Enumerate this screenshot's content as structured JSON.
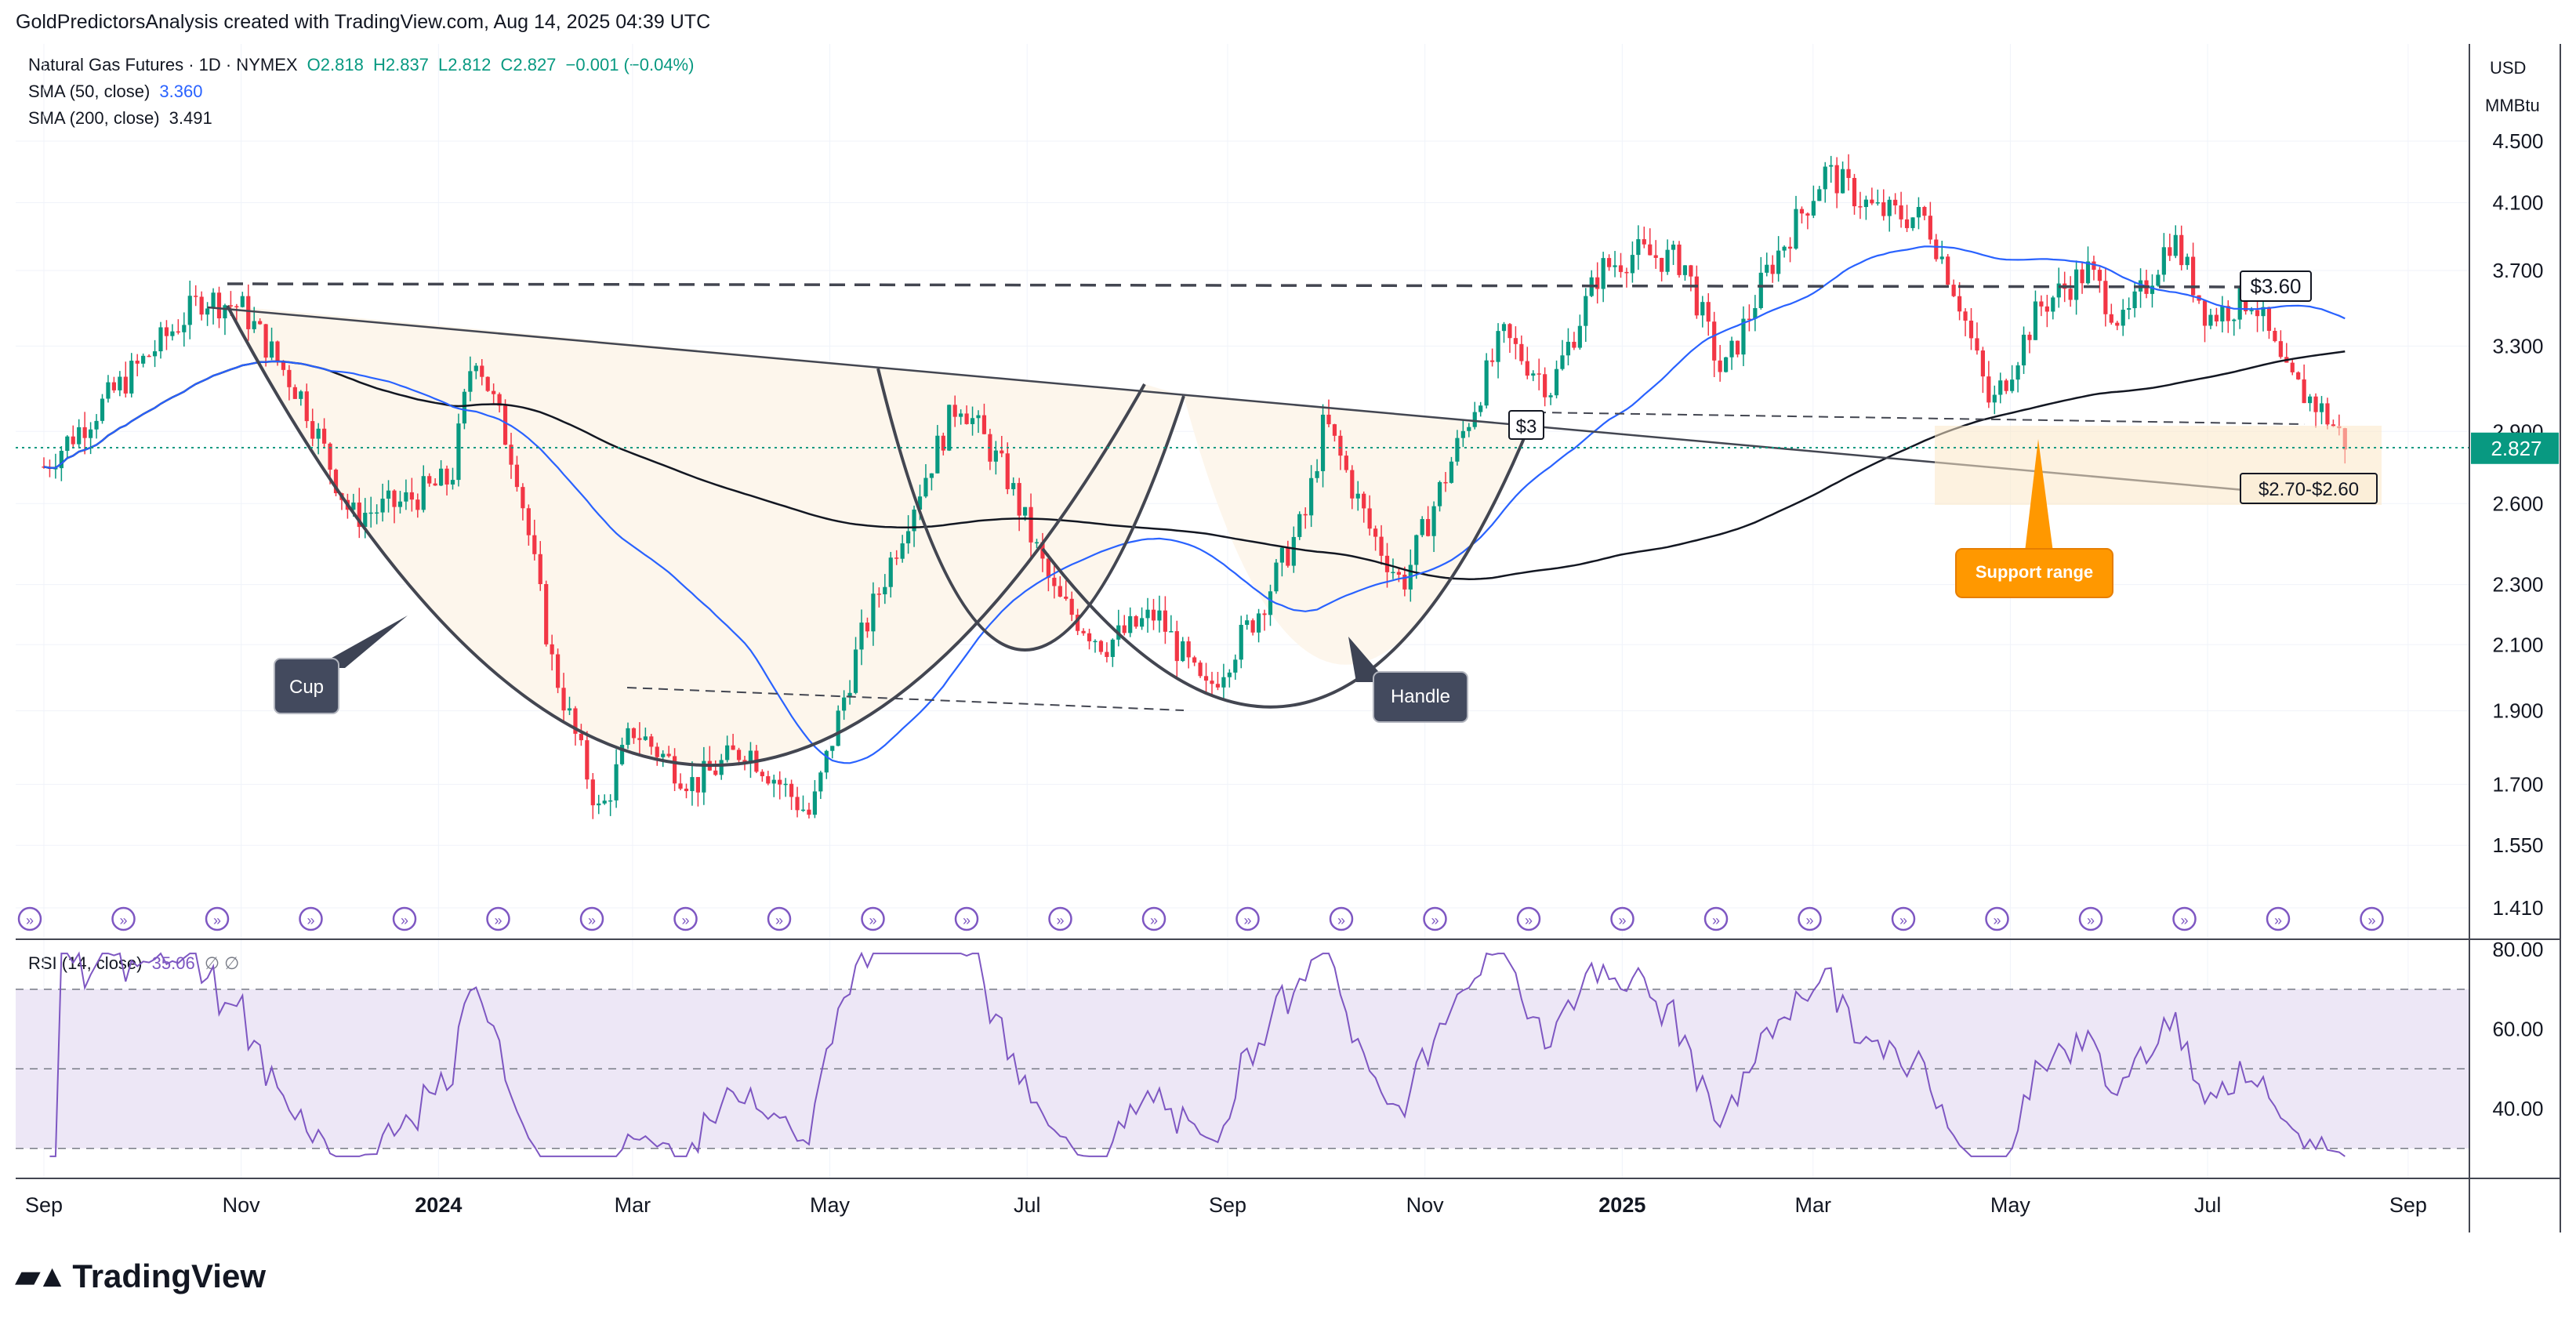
{
  "header": {
    "attribution": "GoldPredictorsAnalysis created with TradingView.com, Aug 14, 2025 04:39 UTC"
  },
  "legend": {
    "symbol": "Natural Gas Futures · 1D · NYMEX",
    "open": "O2.818",
    "high": "H2.837",
    "low": "L2.812",
    "close": "C2.827",
    "change": "−0.001 (−0.04%)",
    "sma50_label": "SMA (50, close)",
    "sma50_value": "3.360",
    "sma200_label": "SMA (200, close)",
    "sma200_value": "3.491",
    "rsi_label": "RSI (14, close)",
    "rsi_value": "35.06",
    "rsi_extra": "∅ ∅"
  },
  "axis": {
    "currency": "USD",
    "unit": "MMBtu"
  },
  "colors": {
    "up": "#089981",
    "down": "#f23645",
    "sma50": "#2962ff",
    "sma200": "#131722",
    "rsi": "#7e57c2",
    "rsi_band": "#ede7f6",
    "support": "#ff9800",
    "cup_fill": "#fdf6ec",
    "price_label_bg": "#089981"
  },
  "brand": {
    "name": "TradingView"
  },
  "chart_data": {
    "type": "candlestick",
    "series_name": "Natural Gas Futures",
    "last_price": "2.827",
    "y_axis": {
      "scale": "log",
      "ticks": [
        "4.500",
        "4.100",
        "3.700",
        "3.300",
        "2.900",
        "2.600",
        "2.300",
        "2.100",
        "1.900",
        "1.700",
        "1.550",
        "1.410"
      ]
    },
    "x_axis": {
      "ticks": [
        "Sep",
        "Nov",
        "2024",
        "Mar",
        "May",
        "Jul",
        "Sep",
        "Nov",
        "2025",
        "Mar",
        "May",
        "Jul",
        "Sep"
      ],
      "bold": [
        "2024",
        "2025"
      ]
    },
    "approx_closes": [
      [
        "2023-09",
        2.75
      ],
      [
        "2023-10-20",
        3.55
      ],
      [
        "2023-11-01",
        3.5
      ],
      [
        "2023-11-20",
        3.05
      ],
      [
        "2023-12-05",
        2.55
      ],
      [
        "2023-12-20",
        2.6
      ],
      [
        "2024-01-05",
        2.7
      ],
      [
        "2024-01-12",
        3.3
      ],
      [
        "2024-01-25",
        2.75
      ],
      [
        "2024-02-05",
        2.05
      ],
      [
        "2024-02-20",
        1.62
      ],
      [
        "2024-03-01",
        1.85
      ],
      [
        "2024-03-20",
        1.7
      ],
      [
        "2024-04-05",
        1.8
      ],
      [
        "2024-04-25",
        1.62
      ],
      [
        "2024-05-10",
        2.1
      ],
      [
        "2024-05-25",
        2.55
      ],
      [
        "2024-06-10",
        3.05
      ],
      [
        "2024-06-25",
        2.7
      ],
      [
        "2024-07-10",
        2.25
      ],
      [
        "2024-07-25",
        2.1
      ],
      [
        "2024-08-10",
        2.2
      ],
      [
        "2024-08-25",
        1.95
      ],
      [
        "2024-09-10",
        2.2
      ],
      [
        "2024-09-25",
        2.55
      ],
      [
        "2024-10-01",
        2.95
      ],
      [
        "2024-10-15",
        2.5
      ],
      [
        "2024-10-25",
        2.3
      ],
      [
        "2024-11-10",
        2.8
      ],
      [
        "2024-11-25",
        3.35
      ],
      [
        "2024-12-10",
        3.1
      ],
      [
        "2024-12-25",
        3.7
      ],
      [
        "2025-01-05",
        3.8
      ],
      [
        "2025-01-20",
        3.75
      ],
      [
        "2025-02-01",
        3.15
      ],
      [
        "2025-02-15",
        3.7
      ],
      [
        "2025-03-05",
        4.3
      ],
      [
        "2025-03-20",
        4.05
      ],
      [
        "2025-04-05",
        4.0
      ],
      [
        "2025-04-15",
        3.55
      ],
      [
        "2025-04-25",
        3.0
      ],
      [
        "2025-05-10",
        3.5
      ],
      [
        "2025-05-25",
        3.7
      ],
      [
        "2025-06-05",
        3.4
      ],
      [
        "2025-06-20",
        3.9
      ],
      [
        "2025-07-01",
        3.45
      ],
      [
        "2025-07-15",
        3.55
      ],
      [
        "2025-07-25",
        3.15
      ],
      [
        "2025-08-05",
        3.0
      ],
      [
        "2025-08-14",
        2.827
      ]
    ],
    "sma50": {
      "name": "SMA (50, close)",
      "last": 3.36
    },
    "sma200": {
      "name": "SMA (200, close)",
      "last": 3.491
    },
    "annotations": {
      "cup": "Cup",
      "handle": "Handle",
      "support_box": "Support range",
      "level_360": "$3.60",
      "level_3": "$3",
      "range_label": "$2.70-$2.60"
    },
    "rsi": {
      "name": "RSI (14, close)",
      "last": 35.06,
      "ticks": [
        "80.00",
        "60.00",
        "40.00"
      ],
      "bands": [
        30,
        50,
        70
      ]
    }
  }
}
